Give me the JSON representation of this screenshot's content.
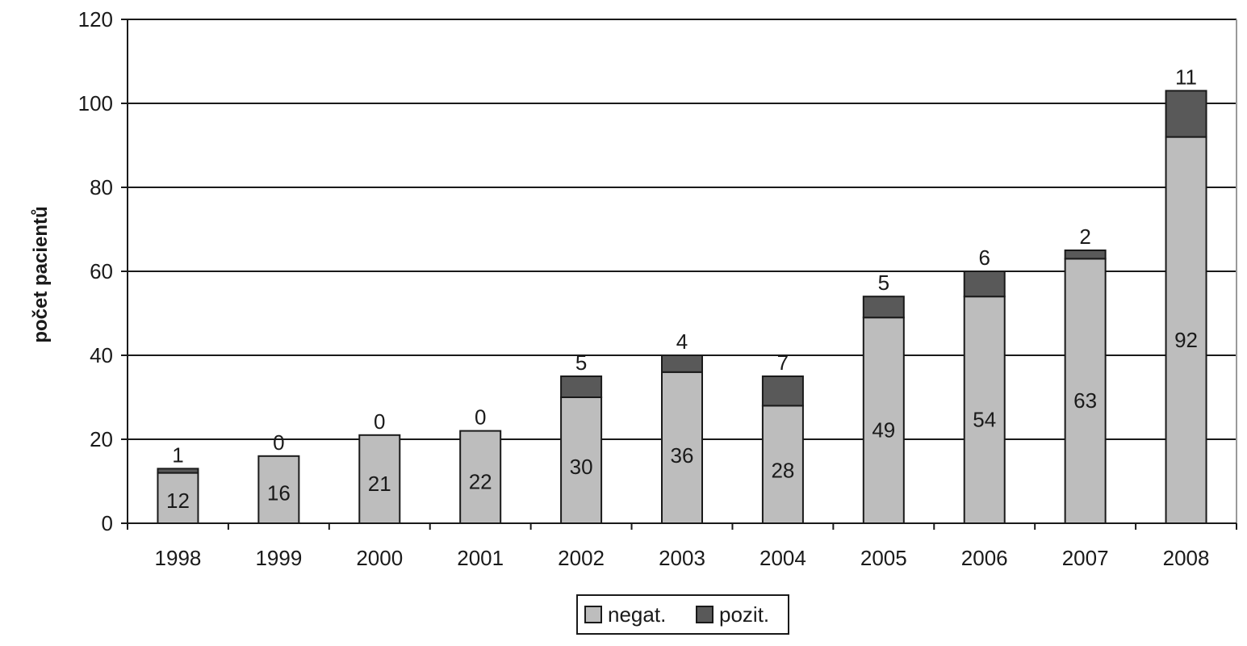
{
  "chart_data": {
    "type": "bar",
    "stacked": true,
    "categories": [
      "1998",
      "1999",
      "2000",
      "2001",
      "2002",
      "2003",
      "2004",
      "2005",
      "2006",
      "2007",
      "2008"
    ],
    "series": [
      {
        "name": "negat.",
        "color": "#bdbdbd",
        "values": [
          12,
          16,
          21,
          22,
          30,
          36,
          28,
          49,
          54,
          63,
          92
        ]
      },
      {
        "name": "pozit.",
        "color": "#595959",
        "values": [
          1,
          0,
          0,
          0,
          5,
          4,
          7,
          5,
          6,
          2,
          11
        ]
      }
    ],
    "title": "",
    "xlabel": "",
    "ylabel": "počet pacientů",
    "ylim": [
      0,
      120
    ],
    "yticks": [
      0,
      20,
      40,
      60,
      80,
      100,
      120
    ],
    "grid": true,
    "legend_position": "bottom"
  }
}
